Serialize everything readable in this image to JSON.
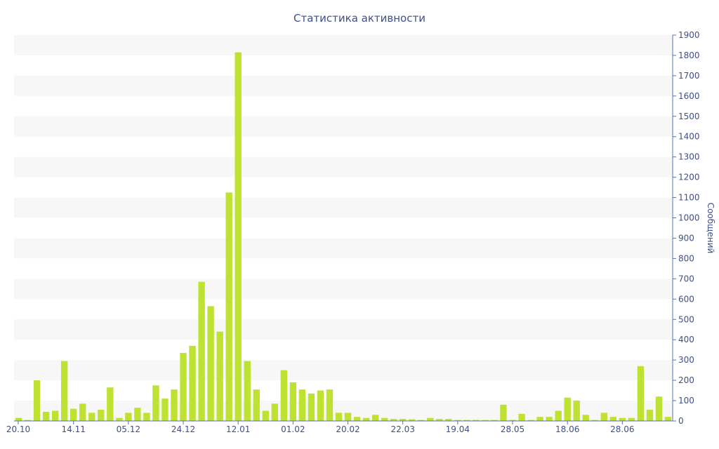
{
  "chart_data": {
    "type": "bar",
    "title": "Статистика активности",
    "xlabel": "",
    "ylabel": "Сообщений",
    "ylim": [
      0,
      1900
    ],
    "y_ticks": [
      0,
      100,
      200,
      300,
      400,
      500,
      600,
      700,
      800,
      900,
      1000,
      1100,
      1200,
      1300,
      1400,
      1500,
      1600,
      1700,
      1800,
      1900
    ],
    "x_tick_labels": [
      {
        "label": "20.10",
        "index": 0
      },
      {
        "label": "14.11",
        "index": 6
      },
      {
        "label": "05.12",
        "index": 12
      },
      {
        "label": "24.12",
        "index": 18
      },
      {
        "label": "12.01",
        "index": 24
      },
      {
        "label": "01.02",
        "index": 30
      },
      {
        "label": "20.02",
        "index": 36
      },
      {
        "label": "22.03",
        "index": 42
      },
      {
        "label": "19.04",
        "index": 48
      },
      {
        "label": "28.05",
        "index": 54
      },
      {
        "label": "18.06",
        "index": 60
      },
      {
        "label": "28.06",
        "index": 66
      }
    ],
    "values": [
      15,
      5,
      200,
      45,
      50,
      295,
      60,
      85,
      40,
      55,
      165,
      15,
      40,
      65,
      40,
      175,
      110,
      155,
      335,
      370,
      685,
      565,
      440,
      1125,
      1815,
      295,
      155,
      50,
      85,
      250,
      190,
      155,
      135,
      150,
      155,
      40,
      40,
      20,
      15,
      30,
      15,
      10,
      10,
      8,
      5,
      15,
      10,
      10,
      5,
      5,
      5,
      5,
      5,
      80,
      5,
      35,
      5,
      20,
      20,
      50,
      115,
      100,
      30,
      5,
      40,
      20,
      15,
      15,
      270,
      55,
      120,
      20
    ],
    "grid": "alternating horizontal bands",
    "y_axis_side": "right",
    "colors": {
      "bar": "#bde232",
      "axis": "#5b6fae",
      "text": "#3d4f8a",
      "band": "#f7f7f7"
    }
  }
}
